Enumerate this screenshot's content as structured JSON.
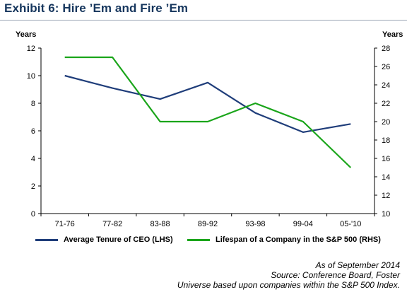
{
  "header": {
    "title": "Exhibit 6: Hire ’Em and Fire ’Em"
  },
  "chart_data": {
    "type": "line",
    "categories": [
      "71-76",
      "77-82",
      "83-88",
      "89-92",
      "93-98",
      "99-04",
      "05-'10"
    ],
    "left_axis": {
      "label": "Years",
      "ylim": [
        0,
        12
      ],
      "ticks": [
        "0",
        "2",
        "4",
        "6",
        "8",
        "10",
        "12"
      ]
    },
    "right_axis": {
      "label": "Years",
      "ylim": [
        10,
        28
      ],
      "ticks": [
        "10",
        "12",
        "14",
        "16",
        "18",
        "20",
        "22",
        "24",
        "26",
        "28"
      ]
    },
    "series": [
      {
        "name": "Average Tenure of CEO (LHS)",
        "axis": "left",
        "color": "#1f3d7a",
        "values": [
          10.0,
          9.1,
          8.3,
          9.5,
          7.3,
          5.9,
          6.5
        ]
      },
      {
        "name": "Lifespan of a Company in the S&P 500 (RHS)",
        "axis": "right",
        "color": "#1aa51a",
        "values": [
          27,
          27,
          20,
          20,
          22,
          20,
          15
        ]
      }
    ],
    "grid": false,
    "legend_position": "bottom"
  },
  "notes": {
    "line1": "As of September 2014",
    "line2": "Source:  Conference Board, Foster",
    "line3": "Universe based upon companies within the S&P 500 Index."
  }
}
